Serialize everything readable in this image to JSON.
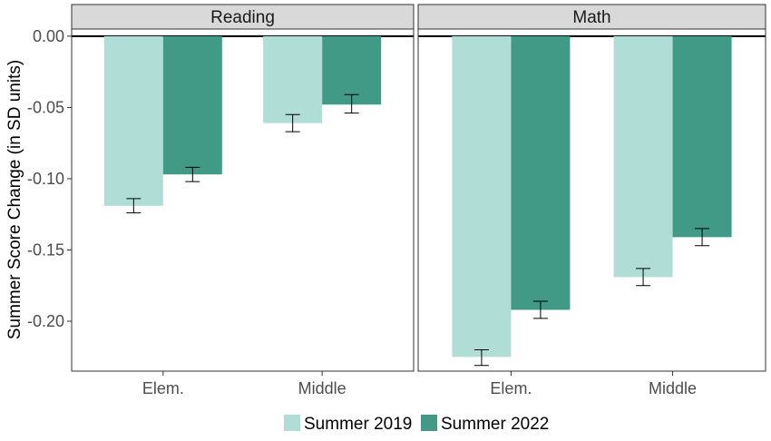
{
  "chart_data": {
    "type": "bar",
    "ylabel": "Summer Score Change (in SD units)",
    "ylim": [
      -0.235,
      0.005
    ],
    "yticks": [
      0.0,
      -0.05,
      -0.1,
      -0.15,
      -0.2
    ],
    "ytick_labels": [
      "0.00",
      "-0.05",
      "-0.10",
      "-0.15",
      "-0.20"
    ],
    "grid": false,
    "legend_position": "bottom",
    "categories": [
      "Elem.",
      "Middle"
    ],
    "series": [
      {
        "name": "Summer 2019",
        "color": "#b0ddd6"
      },
      {
        "name": "Summer 2022",
        "color": "#419a86"
      }
    ],
    "panels": [
      {
        "title": "Reading",
        "values": {
          "Summer 2019": [
            -0.119,
            -0.061
          ],
          "Summer 2022": [
            -0.097,
            -0.048
          ]
        },
        "errors": {
          "Summer 2019": [
            [
              -0.124,
              -0.114
            ],
            [
              -0.067,
              -0.055
            ]
          ],
          "Summer 2022": [
            [
              -0.102,
              -0.092
            ],
            [
              -0.054,
              -0.041
            ]
          ]
        }
      },
      {
        "title": "Math",
        "values": {
          "Summer 2019": [
            -0.225,
            -0.169
          ],
          "Summer 2022": [
            -0.192,
            -0.141
          ]
        },
        "errors": {
          "Summer 2019": [
            [
              -0.231,
              -0.22
            ],
            [
              -0.175,
              -0.163
            ]
          ],
          "Summer 2022": [
            [
              -0.198,
              -0.186
            ],
            [
              -0.147,
              -0.135
            ]
          ]
        }
      }
    ]
  }
}
